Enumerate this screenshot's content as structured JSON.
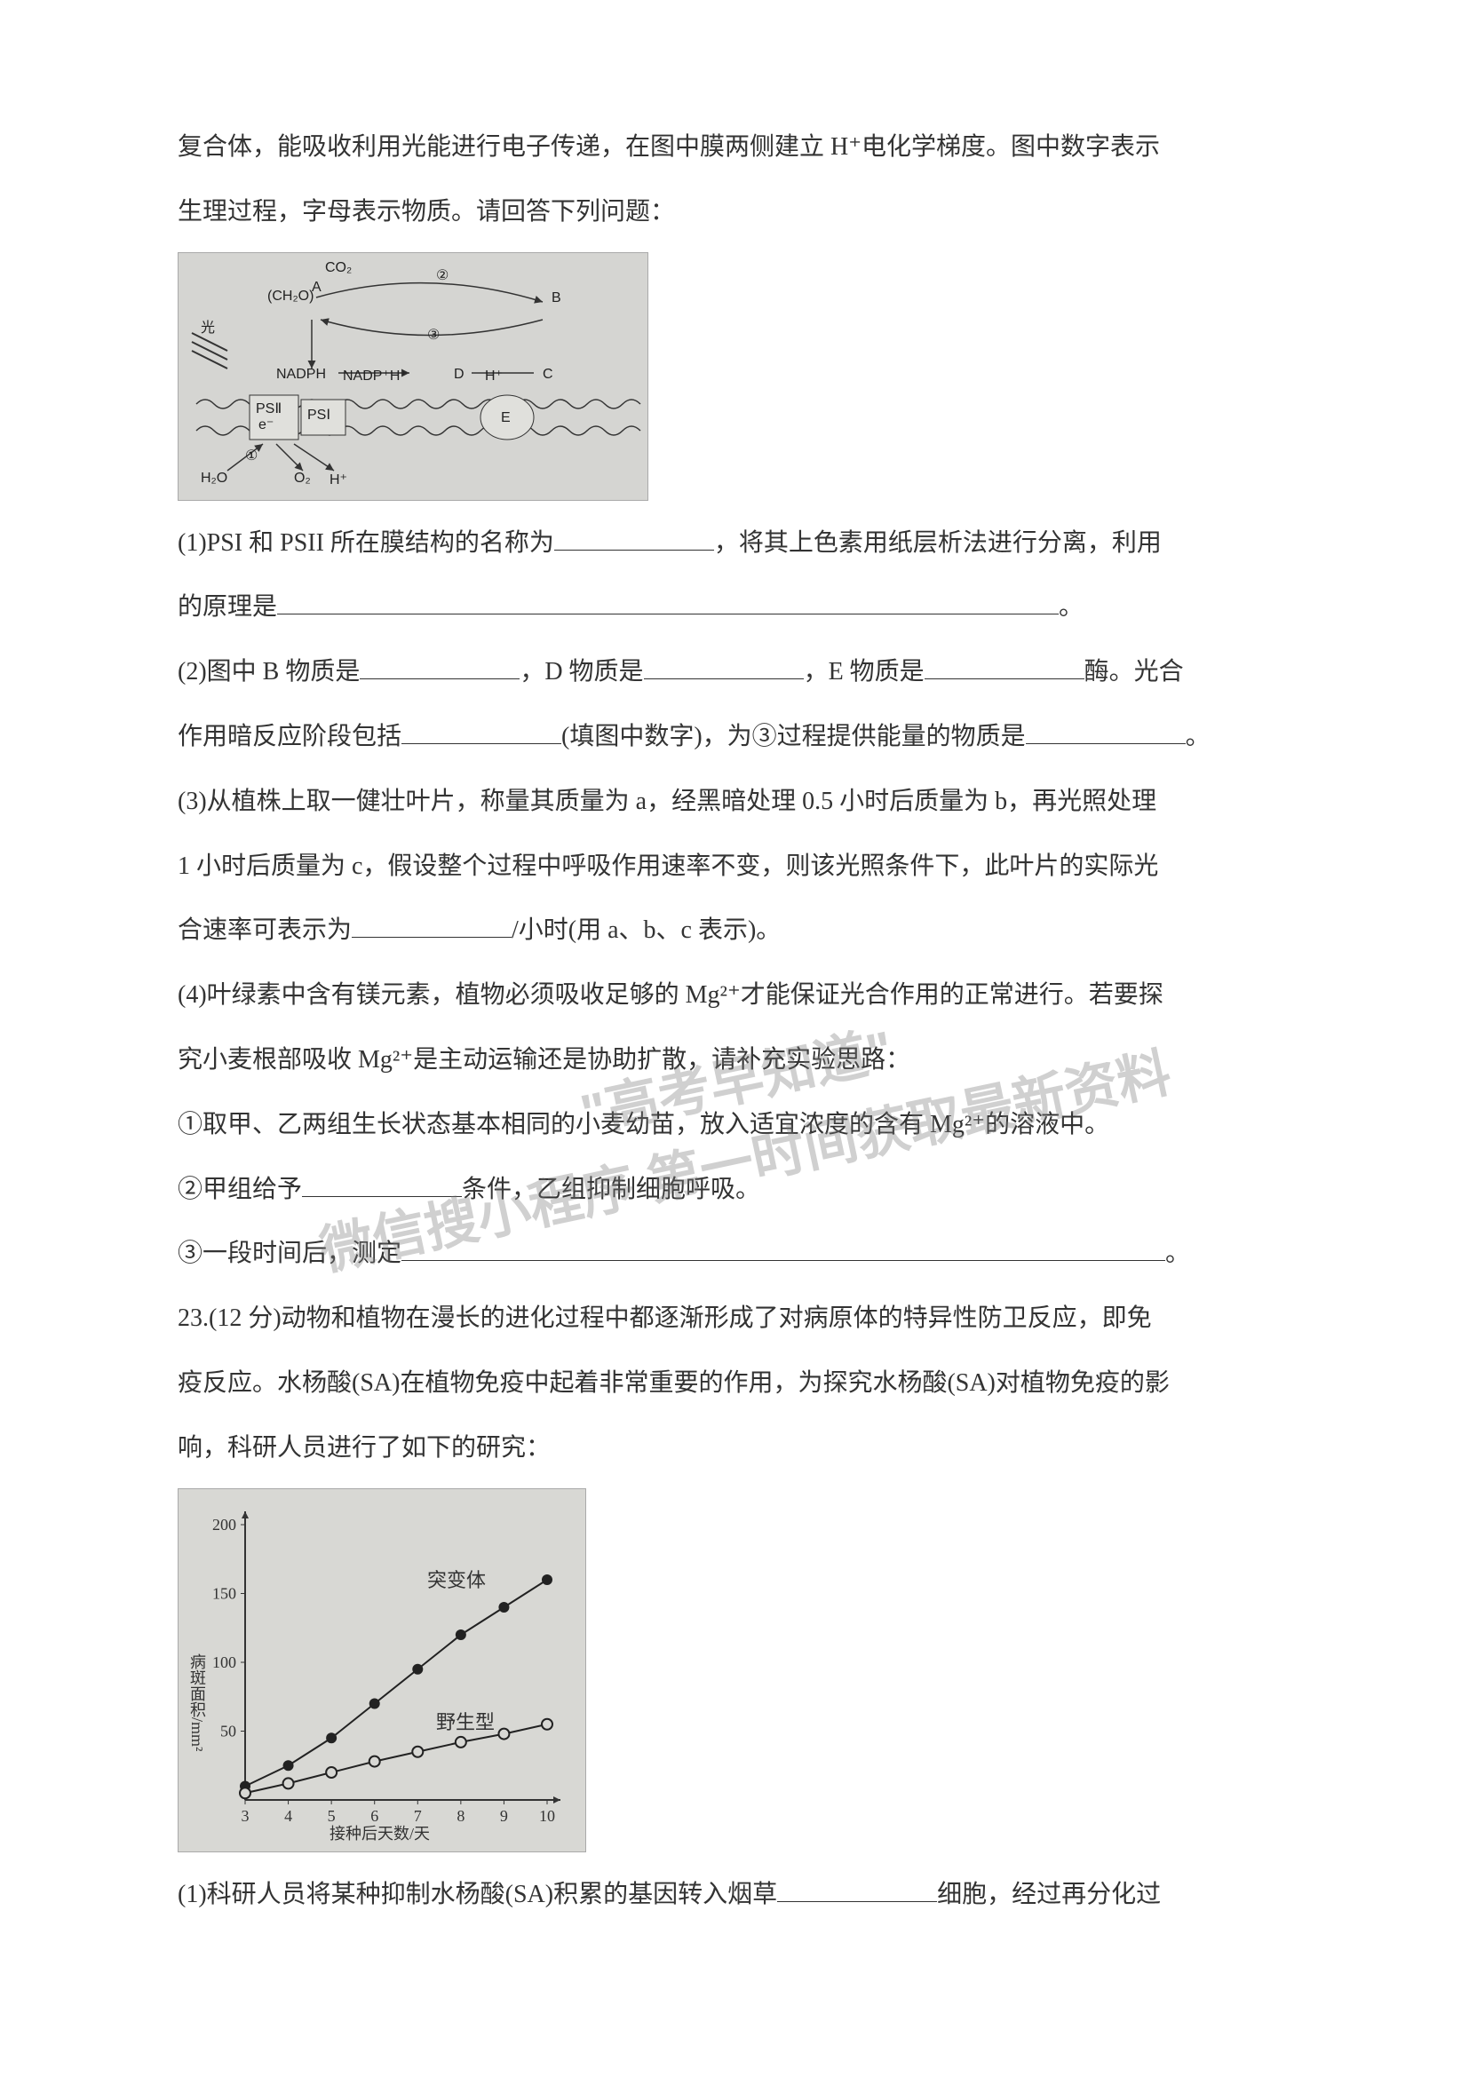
{
  "intro": {
    "line1": "复合体，能吸收利用光能进行电子传递，在图中膜两侧建立 H⁺电化学梯度。图中数字表示",
    "line2": "生理过程，字母表示物质。请回答下列问题："
  },
  "diagram1": {
    "labels": {
      "light": "光",
      "co2": "CO₂",
      "ch2o": "(CH₂O)",
      "nadph": "NADPH",
      "nadp": "NADP⁺H⁺",
      "h2o": "H₂O",
      "o2": "O₂",
      "hplus": "H⁺",
      "ps2": "PSⅡ",
      "ps1": "PSⅠ",
      "e": "e⁻",
      "A": "A",
      "B": "B",
      "C": "C",
      "D": "D",
      "E": "E",
      "n1": "①",
      "n2": "②",
      "n3": "③"
    },
    "colors": {
      "bg": "#d5d5d2",
      "line": "#333333"
    }
  },
  "q1": {
    "prefix": "(1)PSI 和 PSII 所在膜结构的名称为",
    "mid": "，将其上色素用纸层析法进行分离，利用",
    "line2_prefix": "的原理是",
    "end": "。"
  },
  "q2": {
    "prefix": "(2)图中 B 物质是",
    "mid1": "，D 物质是",
    "mid2": "，E 物质是",
    "mid3": "酶。光合",
    "line2_prefix": "作用暗反应阶段包括",
    "line2_mid": "(填图中数字)，为③过程提供能量的物质是",
    "end": "。"
  },
  "q3": {
    "line1": "(3)从植株上取一健壮叶片，称量其质量为 a，经黑暗处理 0.5 小时后质量为 b，再光照处理",
    "line2": "1 小时后质量为 c，假设整个过程中呼吸作用速率不变，则该光照条件下，此叶片的实际光",
    "line3_prefix": "合速率可表示为",
    "line3_suffix": "/小时(用 a、b、c 表示)。"
  },
  "q4": {
    "line1": "(4)叶绿素中含有镁元素，植物必须吸收足够的 Mg²⁺才能保证光合作用的正常进行。若要探",
    "line2": "究小麦根部吸收 Mg²⁺是主动运输还是协助扩散，请补充实验思路：",
    "step1": "①取甲、乙两组生长状态基本相同的小麦幼苗，放入适宜浓度的含有 Mg²⁺的溶液中。",
    "step2_prefix": "②甲组给予",
    "step2_suffix": "条件，乙组抑制细胞呼吸。",
    "step3_prefix": "③一段时间后，测定",
    "step3_end": "。"
  },
  "q23": {
    "line1": "23.(12 分)动物和植物在漫长的进化过程中都逐渐形成了对病原体的特异性防卫反应，即免",
    "line2": "疫反应。水杨酸(SA)在植物免疫中起着非常重要的作用，为探究水杨酸(SA)对植物免疫的影",
    "line3": "响，科研人员进行了如下的研究："
  },
  "chart": {
    "type": "line",
    "ylabel": "病斑面积/mm²",
    "xlabel": "接种后天数/天",
    "x_values": [
      3,
      4,
      5,
      6,
      7,
      8,
      9,
      10
    ],
    "series": [
      {
        "name": "突变体",
        "label": "突变体",
        "y_values": [
          10,
          25,
          45,
          70,
          95,
          120,
          140,
          160
        ],
        "marker": "filled-circle",
        "color": "#222222"
      },
      {
        "name": "野生型",
        "label": "野生型",
        "y_values": [
          5,
          12,
          20,
          28,
          35,
          42,
          48,
          55
        ],
        "marker": "open-circle",
        "color": "#222222"
      }
    ],
    "ylim": [
      0,
      200
    ],
    "ytick_step": 50,
    "xlim": [
      3,
      10
    ],
    "background_color": "#d8d8d4",
    "axis_color": "#333333"
  },
  "q23_1": {
    "prefix": "(1)科研人员将某种抑制水杨酸(SA)积累的基因转入烟草",
    "suffix": "细胞，经过再分化过"
  },
  "watermarks": {
    "w1": "\"高考早知道\"",
    "w2": "微信搜小程序 第一时间获取最新资料"
  }
}
